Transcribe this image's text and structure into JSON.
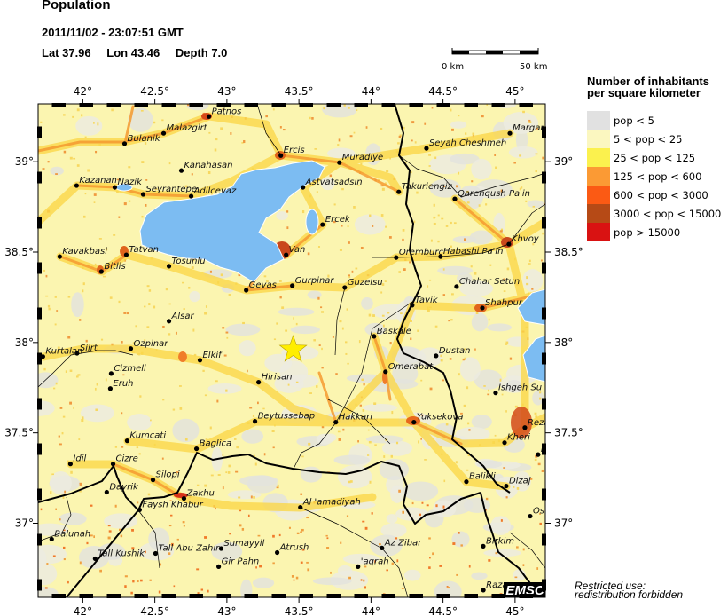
{
  "header": {
    "title": "Population",
    "datetime": "2011/11/02 - 23:07:51 GMT",
    "lat_text": "Lat 37.96",
    "lon_text": "Lon  43.46",
    "depth_text": "Depth  7.0"
  },
  "scale_bar": {
    "start_label": "0 km",
    "end_label": "50 km"
  },
  "map": {
    "lon_range": [
      41.69,
      45.21
    ],
    "lat_range": [
      36.59,
      39.32
    ],
    "lon_ticks": [
      {
        "v": 42,
        "label": "42°"
      },
      {
        "v": 42.5,
        "label": "42.5°"
      },
      {
        "v": 43,
        "label": "43°"
      },
      {
        "v": 43.5,
        "label": "43.5°"
      },
      {
        "v": 44,
        "label": "44°"
      },
      {
        "v": 44.5,
        "label": "44.5°"
      },
      {
        "v": 45,
        "label": "45°"
      }
    ],
    "lat_ticks": [
      {
        "v": 39,
        "label": "39°"
      },
      {
        "v": 38.5,
        "label": "38.5°"
      },
      {
        "v": 38,
        "label": "38°"
      },
      {
        "v": 37.5,
        "label": "37.5°"
      },
      {
        "v": 37,
        "label": "37°"
      }
    ],
    "epicenter": {
      "lat": 37.96,
      "lon": 43.46,
      "color": "#ffee00",
      "icon": "star-icon"
    },
    "water_color": "#7cbcf2",
    "logo": "EMSC",
    "cities": [
      {
        "name": "Patnos",
        "lat": 39.25,
        "lon": 42.875
      },
      {
        "name": "Malazgirt",
        "lat": 39.157,
        "lon": 42.561
      },
      {
        "name": "Bulanik",
        "lat": 39.1,
        "lon": 42.29
      },
      {
        "name": "Kanahasan",
        "lat": 38.951,
        "lon": 42.684
      },
      {
        "name": "Kazanan",
        "lat": 38.868,
        "lon": 41.957
      },
      {
        "name": "Nazik",
        "lat": 38.858,
        "lon": 42.222
      },
      {
        "name": "Seyrantepe",
        "lat": 38.819,
        "lon": 42.419
      },
      {
        "name": "Adilcevaz",
        "lat": 38.809,
        "lon": 42.752
      },
      {
        "name": "Kavakbasi",
        "lat": 38.475,
        "lon": 41.84
      },
      {
        "name": "Tatvan",
        "lat": 38.485,
        "lon": 42.302
      },
      {
        "name": "Bitlis",
        "lat": 38.392,
        "lon": 42.129
      },
      {
        "name": "Tosunlu",
        "lat": 38.422,
        "lon": 42.598
      },
      {
        "name": "Ercis",
        "lat": 39.034,
        "lon": 43.374
      },
      {
        "name": "Muradiye",
        "lat": 38.995,
        "lon": 43.781
      },
      {
        "name": "Astvatsadsin",
        "lat": 38.858,
        "lon": 43.528
      },
      {
        "name": "Takuriengiz",
        "lat": 38.833,
        "lon": 44.193
      },
      {
        "name": "Qarehqush Pa'in",
        "lat": 38.794,
        "lon": 44.582
      },
      {
        "name": "Seyah Cheshmeh",
        "lat": 39.074,
        "lon": 44.385
      },
      {
        "name": "Margar",
        "lat": 39.157,
        "lon": 44.964
      },
      {
        "name": "Ercek",
        "lat": 38.652,
        "lon": 43.664
      },
      {
        "name": "Van",
        "lat": 38.485,
        "lon": 43.411
      },
      {
        "name": "Oremburc",
        "lat": 38.47,
        "lon": 44.175
      },
      {
        "name": "Habashi Pa'in",
        "lat": 38.475,
        "lon": 44.483
      },
      {
        "name": "Khvoy",
        "lat": 38.544,
        "lon": 44.957
      },
      {
        "name": "Gevas",
        "lat": 38.289,
        "lon": 43.134
      },
      {
        "name": "Gurpinar",
        "lat": 38.314,
        "lon": 43.454
      },
      {
        "name": "Guzelsu",
        "lat": 38.304,
        "lon": 43.818
      },
      {
        "name": "Chahar Setun",
        "lat": 38.309,
        "lon": 44.594
      },
      {
        "name": "Alsar",
        "lat": 38.118,
        "lon": 42.598
      },
      {
        "name": "Ozpinar",
        "lat": 37.966,
        "lon": 42.333
      },
      {
        "name": "Siirt",
        "lat": 37.94,
        "lon": 41.96
      },
      {
        "name": "Kurtalan",
        "lat": 37.922,
        "lon": 41.723
      },
      {
        "name": "Elkif",
        "lat": 37.902,
        "lon": 42.813
      },
      {
        "name": "Cizmeli",
        "lat": 37.828,
        "lon": 42.197
      },
      {
        "name": "Eruh",
        "lat": 37.745,
        "lon": 42.191
      },
      {
        "name": "Hirisan",
        "lat": 37.78,
        "lon": 43.22
      },
      {
        "name": "Beytussebap",
        "lat": 37.564,
        "lon": 43.195
      },
      {
        "name": "Kumcati",
        "lat": 37.456,
        "lon": 42.308
      },
      {
        "name": "Baglica",
        "lat": 37.412,
        "lon": 42.789
      },
      {
        "name": "Idil",
        "lat": 37.328,
        "lon": 41.914
      },
      {
        "name": "Cizre",
        "lat": 37.328,
        "lon": 42.21
      },
      {
        "name": "Tavik",
        "lat": 38.206,
        "lon": 44.286
      },
      {
        "name": "Shahpur",
        "lat": 38.191,
        "lon": 44.773
      },
      {
        "name": "Baskale",
        "lat": 38.034,
        "lon": 44.021
      },
      {
        "name": "Dustan",
        "lat": 37.926,
        "lon": 44.452
      },
      {
        "name": "Omerabat",
        "lat": 37.838,
        "lon": 44.101
      },
      {
        "name": "Ishgeh Su",
        "lat": 37.721,
        "lon": 44.865
      },
      {
        "name": "Hakkari",
        "lat": 37.559,
        "lon": 43.756
      },
      {
        "name": "Yuksekova",
        "lat": 37.559,
        "lon": 44.298
      },
      {
        "name": "Reza",
        "lat": 37.529,
        "lon": 45.068
      },
      {
        "name": "Kheri",
        "lat": 37.446,
        "lon": 44.927
      },
      {
        "name": "B",
        "lat": 37.38,
        "lon": 45.16
      },
      {
        "name": "Silopi",
        "lat": 37.24,
        "lon": 42.487
      },
      {
        "name": "Dayrik",
        "lat": 37.172,
        "lon": 42.166
      },
      {
        "name": "Zakhu",
        "lat": 37.137,
        "lon": 42.702
      },
      {
        "name": "Faysh Khabur",
        "lat": 37.074,
        "lon": 42.394
      },
      {
        "name": "Balunah",
        "lat": 36.912,
        "lon": 41.784
      },
      {
        "name": "Tall Kushik",
        "lat": 36.804,
        "lon": 42.086
      },
      {
        "name": "Tall Abu Zahir",
        "lat": 36.833,
        "lon": 42.505
      },
      {
        "name": "Sumayyil",
        "lat": 36.86,
        "lon": 42.96
      },
      {
        "name": "Gir Pahn",
        "lat": 36.76,
        "lon": 42.943
      },
      {
        "name": "Atrush",
        "lat": 36.838,
        "lon": 43.349
      },
      {
        "name": "Al 'amadiyah",
        "lat": 37.088,
        "lon": 43.51
      },
      {
        "name": "Az Zibar",
        "lat": 36.863,
        "lon": 44.076
      },
      {
        "name": "'aqrah",
        "lat": 36.76,
        "lon": 43.91
      },
      {
        "name": "Birkim",
        "lat": 36.873,
        "lon": 44.779
      },
      {
        "name": "Balikli",
        "lat": 37.23,
        "lon": 44.662
      },
      {
        "name": "Dizaj",
        "lat": 37.206,
        "lon": 44.939
      },
      {
        "name": "Os",
        "lat": 37.039,
        "lon": 45.105
      },
      {
        "name": "Razan",
        "lat": 36.63,
        "lon": 44.78
      }
    ]
  },
  "legend": {
    "title_line1": "Number of inhabitants",
    "title_line2": "per square kilometer",
    "items": [
      {
        "label": "pop < 5",
        "color": "#e1e1e1"
      },
      {
        "label": "5 < pop < 25",
        "color": "#fbf7c0"
      },
      {
        "label": "25 < pop < 125",
        "color": "#fbf14e"
      },
      {
        "label": "125 < pop < 600",
        "color": "#fb9a34"
      },
      {
        "label": "600 < pop < 3000",
        "color": "#fb5a14"
      },
      {
        "label": "3000 < pop < 15000",
        "color": "#b64a16"
      },
      {
        "label": "pop > 15000",
        "color": "#d91212"
      }
    ]
  },
  "notice": {
    "line1": "Restricted use:",
    "line2": "redistribution forbidden"
  }
}
